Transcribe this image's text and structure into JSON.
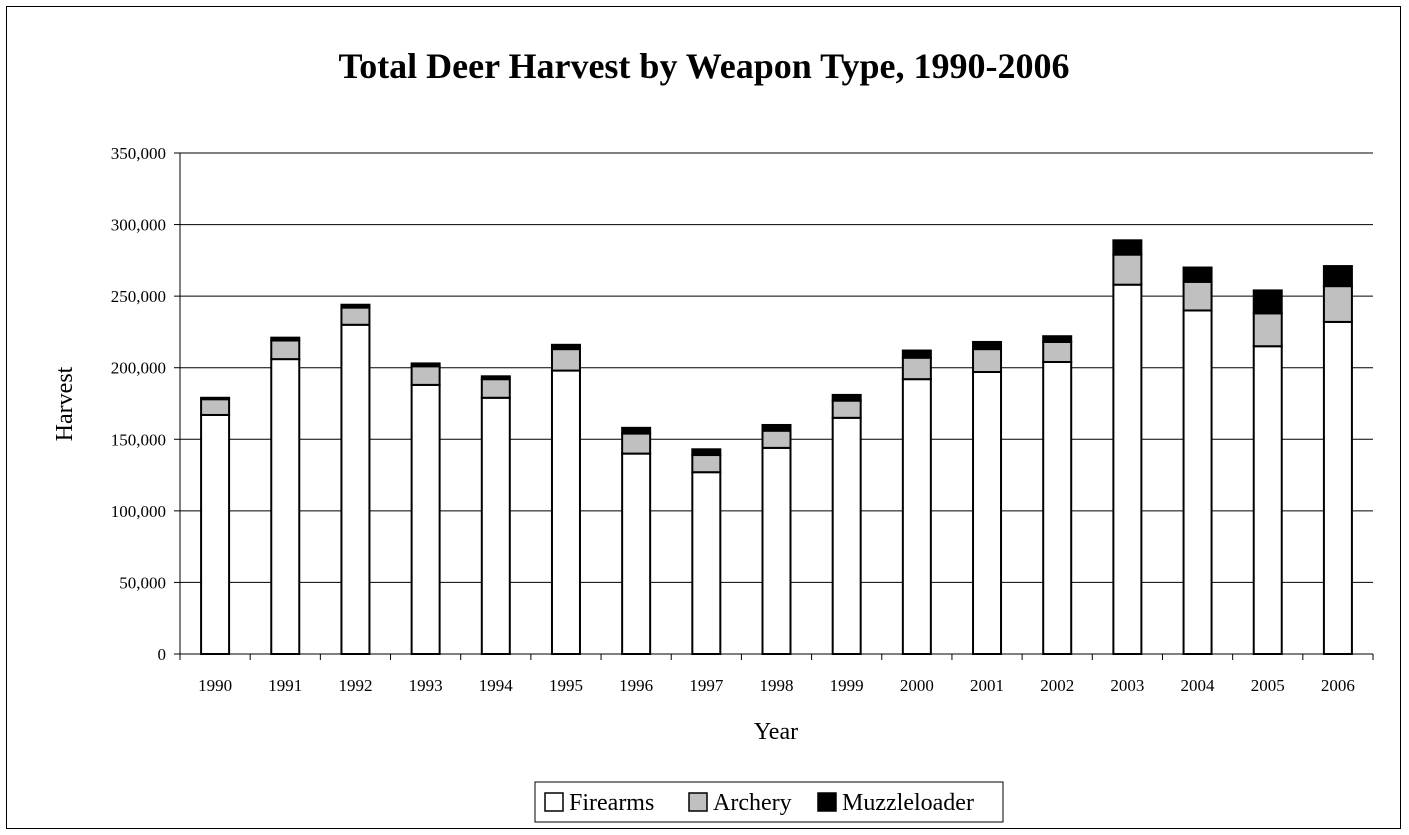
{
  "chart_data": {
    "type": "bar",
    "stacked": true,
    "title": "Total Deer Harvest by Weapon Type, 1990-2006",
    "xlabel": "Year",
    "ylabel": "Harvest",
    "ylim": [
      0,
      350000
    ],
    "yticks": [
      0,
      50000,
      100000,
      150000,
      200000,
      250000,
      300000,
      350000
    ],
    "ytick_labels": [
      "0",
      "50,000",
      "100,000",
      "150,000",
      "200,000",
      "250,000",
      "300,000",
      "350,000"
    ],
    "categories": [
      "1990",
      "1991",
      "1992",
      "1993",
      "1994",
      "1995",
      "1996",
      "1997",
      "1998",
      "1999",
      "2000",
      "2001",
      "2002",
      "2003",
      "2004",
      "2005",
      "2006"
    ],
    "series": [
      {
        "name": "Firearms",
        "color": "#ffffff",
        "values": [
          167000,
          206000,
          230000,
          188000,
          179000,
          198000,
          140000,
          127000,
          144000,
          165000,
          192000,
          197000,
          204000,
          258000,
          240000,
          215000,
          232000
        ]
      },
      {
        "name": "Archery",
        "color": "#c0c0c0",
        "values": [
          11000,
          13000,
          12000,
          13000,
          13000,
          15000,
          14000,
          12000,
          12000,
          12000,
          15000,
          16000,
          14000,
          21000,
          20000,
          23000,
          25000
        ]
      },
      {
        "name": "Muzzleloader",
        "color": "#000000",
        "values": [
          1000,
          2000,
          2000,
          2000,
          2000,
          3000,
          4000,
          4000,
          4000,
          4000,
          5000,
          5000,
          4000,
          10000,
          10000,
          16000,
          14000
        ]
      }
    ],
    "grid": true,
    "legend_position": "bottom"
  }
}
